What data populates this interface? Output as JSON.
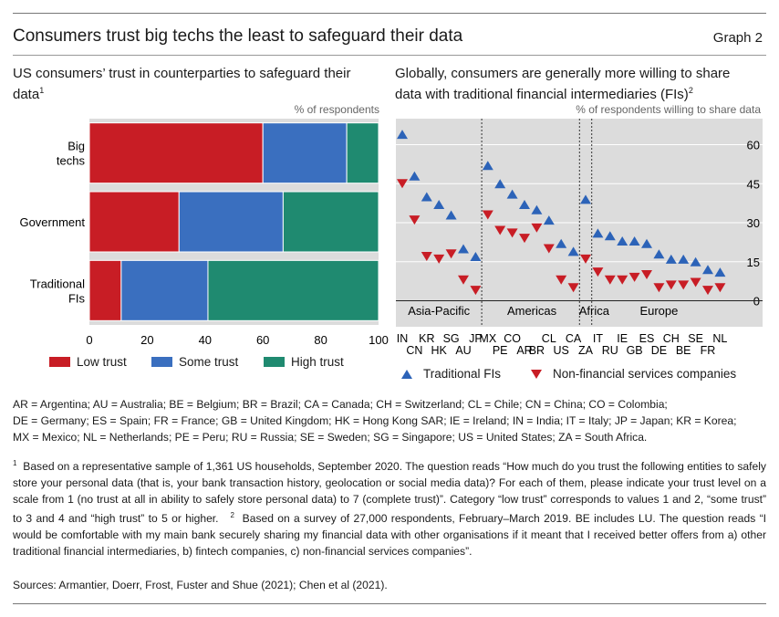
{
  "header": {
    "title": "Consumers trust big techs the least to safeguard their data",
    "graph_label": "Graph 2"
  },
  "left_panel": {
    "title_line1": "US consumers’ trust in counterparties to safeguard their",
    "title_line2": "data",
    "title_sup": "1",
    "unit": "% of respondents"
  },
  "right_panel": {
    "title_line1": "Globally, consumers are generally more willing to share",
    "title_line2": "data with traditional financial intermediaries (FIs)",
    "title_sup": "2",
    "unit": "% of respondents willing to share data"
  },
  "chart_data": [
    {
      "type": "bar",
      "orientation": "horizontal",
      "stacked": true,
      "categories": [
        "Big techs",
        "Government",
        "Traditional FIs"
      ],
      "series": [
        {
          "name": "Low trust",
          "color": "#c81d25",
          "values": [
            60,
            31,
            11
          ]
        },
        {
          "name": "Some trust",
          "color": "#3a6fbf",
          "values": [
            29,
            36,
            30
          ]
        },
        {
          "name": "High trust",
          "color": "#1f8a70",
          "values": [
            11,
            33,
            59
          ]
        }
      ],
      "xlim": [
        0,
        100
      ],
      "xticks": [
        0,
        20,
        40,
        60,
        80,
        100
      ],
      "xlabel": "",
      "ylabel": "",
      "legend_position": "bottom"
    },
    {
      "type": "scatter",
      "categories": [
        "IN",
        "CN",
        "KR",
        "HK",
        "SG",
        "AU",
        "JP",
        "MX",
        "PE",
        "CO",
        "AR",
        "BR",
        "CL",
        "US",
        "CA",
        "ZA",
        "IT",
        "RU",
        "IE",
        "GB",
        "ES",
        "DE",
        "CH",
        "BE",
        "SE",
        "FR",
        "NL"
      ],
      "row1_labels": [
        "IN",
        "",
        "KR",
        "",
        "SG",
        "",
        "JP",
        "MX",
        "",
        "CO",
        "",
        "",
        "CL",
        "",
        "CA",
        "",
        "IT",
        "",
        "IE",
        "",
        "ES",
        "",
        "CH",
        "",
        "SE",
        "",
        "NL"
      ],
      "row2_labels": [
        "",
        "CN",
        "",
        "HK",
        "",
        "AU",
        "",
        "",
        "PE",
        "",
        "AR",
        "BR",
        "",
        "US",
        "",
        "ZA",
        "",
        "RU",
        "",
        "GB",
        "",
        "DE",
        "",
        "BE",
        "",
        "FR",
        ""
      ],
      "series": [
        {
          "name": "Traditional FIs",
          "marker": "triangle-up",
          "color": "#2c63b8",
          "values": [
            64,
            48,
            40,
            37,
            33,
            20,
            17,
            52,
            45,
            41,
            37,
            35,
            31,
            22,
            19,
            39,
            26,
            25,
            23,
            23,
            22,
            18,
            16,
            16,
            15,
            12,
            11
          ]
        },
        {
          "name": "Non-financial services companies",
          "marker": "triangle-down",
          "color": "#c81d25",
          "values": [
            45,
            31,
            17,
            16,
            18,
            8,
            4,
            33,
            27,
            26,
            24,
            28,
            20,
            8,
            5,
            16,
            11,
            8,
            8,
            9,
            10,
            5,
            6,
            6,
            7,
            4,
            5
          ]
        }
      ],
      "region_labels": [
        "Asia-Pacific",
        "Americas",
        "Africa",
        "Europe"
      ],
      "ylim": [
        -10,
        70
      ],
      "yticks": [
        0,
        15,
        30,
        45,
        60
      ],
      "y_axis_side": "right",
      "grid": true,
      "legend_position": "bottom"
    }
  ],
  "abbreviations": [
    "AR = Argentina; AU = Australia; BE = Belgium; BR = Brazil; CA = Canada; CH = Switzerland; CL = Chile; CN = China; CO = Colombia;",
    "DE = Germany; ES = Spain; FR = France; GB = United Kingdom; HK = Hong Kong SAR; IE = Ireland; IN = India; IT = Italy; JP = Japan; KR = Korea;",
    "MX = Mexico; NL = Netherlands; PE = Peru; RU = Russia; SE = Sweden; SG = Singapore; US = United States; ZA = South Africa."
  ],
  "notes": {
    "sup1": "1",
    "note1": "Based on a representative sample of 1,361 US households, September 2020. The question reads “How much do you trust the following entities to safely store your personal data (that is, your bank transaction history, geolocation or social media data)? For each of them, please indicate your trust level on a scale from 1 (no trust at all in ability to safely store personal data) to 7 (complete trust)”. Category “low trust” corresponds to values 1 and 2, “some trust” to 3 and 4 and “high trust” to 5 or higher.",
    "sup2": "2",
    "note2": "Based on a survey of 27,000 respondents, February–March 2019. BE includes LU. The question reads “I would be comfortable with my main bank securely sharing my financial data with other organisations if it meant that I received better offers from a) other traditional financial intermediaries, b) fintech companies, c) non-financial services companies”."
  },
  "sources": "Sources: Armantier, Doerr, Frost, Fuster and Shue (2021); Chen et al (2021)."
}
